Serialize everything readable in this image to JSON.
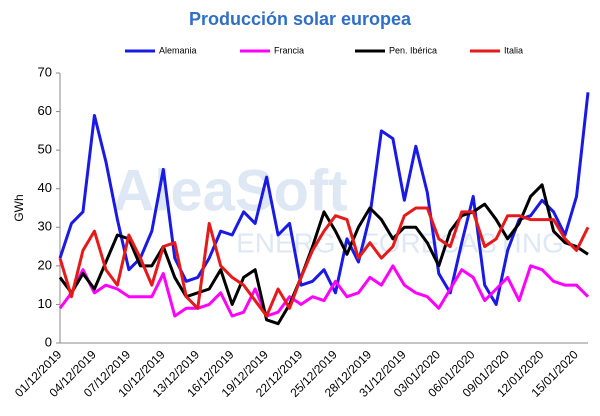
{
  "chart_data": {
    "type": "line",
    "title": "Producción solar europea",
    "y_label": "GWh",
    "watermark": [
      "AleaSoft",
      "ENERGY FORECASTING"
    ],
    "categories": [
      "01/12/2019",
      null,
      null,
      "04/12/2019",
      null,
      null,
      "07/12/2019",
      null,
      null,
      "10/12/2019",
      null,
      null,
      "13/12/2019",
      null,
      null,
      "16/12/2019",
      null,
      null,
      "19/12/2019",
      null,
      null,
      "22/12/2019",
      null,
      null,
      "25/12/2019",
      null,
      null,
      "28/12/2019",
      null,
      null,
      "31/12/2019",
      null,
      null,
      "03/01/2020",
      null,
      null,
      "06/01/2020",
      null,
      null,
      "09/01/2020",
      null,
      null,
      "12/01/2020",
      null,
      null,
      "15/01/2020",
      null
    ],
    "series": [
      {
        "name": "Alemania",
        "color": "#1a1ae6",
        "values": [
          22,
          31,
          34,
          59,
          47,
          32,
          19,
          22,
          29,
          45,
          22,
          16,
          17,
          22,
          29,
          28,
          34,
          31,
          43,
          28,
          31,
          15,
          16,
          19,
          13,
          27,
          21,
          33,
          55,
          53,
          37,
          51,
          39,
          18,
          13,
          26,
          38,
          15,
          10,
          24,
          32,
          33,
          37,
          34,
          28,
          38,
          65
        ]
      },
      {
        "name": "Francia",
        "color": "#ff00ff",
        "values": [
          9,
          13,
          19,
          13,
          15,
          14,
          12,
          12,
          12,
          18,
          7,
          9,
          9,
          10,
          13,
          7,
          8,
          14,
          7,
          8,
          12,
          10,
          12,
          11,
          16,
          12,
          13,
          17,
          15,
          20,
          15,
          13,
          12,
          9,
          14,
          19,
          17,
          11,
          14,
          17,
          11,
          20,
          19,
          16,
          15,
          15,
          12
        ]
      },
      {
        "name": "Pen. Ibérica",
        "color": "#000000",
        "values": [
          17,
          13,
          18,
          14,
          21,
          28,
          27,
          20,
          20,
          25,
          17,
          12,
          13,
          14,
          19,
          10,
          17,
          19,
          6,
          5,
          10,
          17,
          25,
          34,
          29,
          23,
          30,
          35,
          32,
          27,
          30,
          30,
          26,
          20,
          29,
          33,
          34,
          36,
          32,
          27,
          31,
          38,
          41,
          29,
          26,
          25,
          23
        ]
      },
      {
        "name": "Italia",
        "color": "#e61a1a",
        "values": [
          22,
          12,
          24,
          29,
          19,
          15,
          28,
          22,
          15,
          25,
          26,
          12,
          9,
          31,
          20,
          17,
          15,
          11,
          7,
          14,
          9,
          17,
          24,
          29,
          33,
          32,
          22,
          26,
          22,
          25,
          33,
          35,
          35,
          27,
          25,
          34,
          34,
          25,
          27,
          33,
          33,
          32,
          32,
          32,
          27,
          24,
          30
        ]
      }
    ],
    "ylim": [
      0,
      70
    ],
    "yticks": [
      0,
      10,
      20,
      30,
      40,
      50,
      60,
      70
    ],
    "grid": false,
    "legend": "top"
  }
}
